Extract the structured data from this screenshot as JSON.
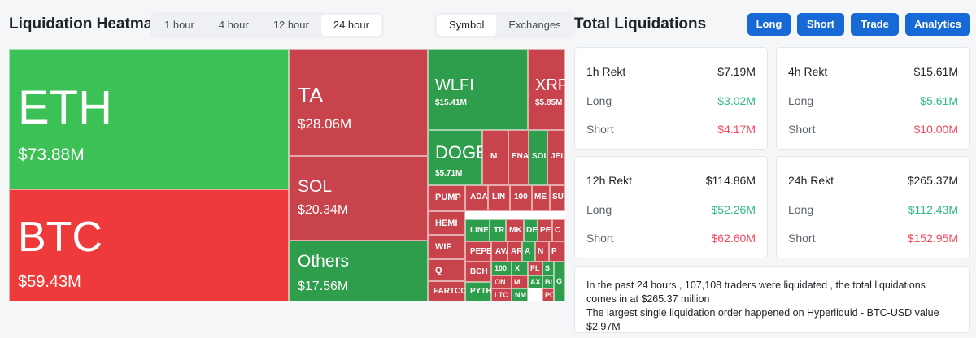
{
  "heatmap": {
    "title": "Liquidation Heatmap",
    "time_tabs": [
      "1 hour",
      "4 hour",
      "12 hour",
      "24 hour"
    ],
    "active_time_tab": "24 hour",
    "view_tabs": [
      "Symbol",
      "Exchanges"
    ],
    "active_view_tab": "Symbol",
    "colors": {
      "long": "#3bc156",
      "short": "#ee3a3a",
      "long_dark": "#2f9e4c",
      "short_dark": "#c8434b"
    },
    "tiles": [
      {
        "symbol": "ETH",
        "value": "$73.88M",
        "type": "long"
      },
      {
        "symbol": "BTC",
        "value": "$59.43M",
        "type": "short"
      },
      {
        "symbol": "TA",
        "value": "$28.06M",
        "type": "short_dark"
      },
      {
        "symbol": "SOL",
        "value": "$20.34M",
        "type": "short_dark"
      },
      {
        "symbol": "Others",
        "value": "$17.56M",
        "type": "long_dark"
      },
      {
        "symbol": "WLFI",
        "value": "$15.41M",
        "type": "long_dark"
      },
      {
        "symbol": "XRP",
        "value": "$5.85M",
        "type": "short_dark"
      },
      {
        "symbol": "DOGE",
        "value": "$5.71M",
        "type": "long_dark"
      },
      {
        "symbol": "M",
        "value": "",
        "type": "short_dark"
      },
      {
        "symbol": "ENA",
        "value": "",
        "type": "short_dark"
      },
      {
        "symbol": "SOL",
        "value": "",
        "type": "long_dark"
      },
      {
        "symbol": "JEL",
        "value": "",
        "type": "short_dark"
      },
      {
        "symbol": "PUMP",
        "value": "",
        "type": "short_dark"
      },
      {
        "symbol": "ADA",
        "value": "",
        "type": "short_dark"
      },
      {
        "symbol": "LIN",
        "value": "",
        "type": "short_dark"
      },
      {
        "symbol": "100",
        "value": "",
        "type": "short_dark"
      },
      {
        "symbol": "ME",
        "value": "",
        "type": "short_dark"
      },
      {
        "symbol": "SU",
        "value": "",
        "type": "short_dark"
      },
      {
        "symbol": "HEMI",
        "value": "",
        "type": "short_dark"
      },
      {
        "symbol": "LINE",
        "value": "",
        "type": "long_dark"
      },
      {
        "symbol": "TR",
        "value": "",
        "type": "long_dark"
      },
      {
        "symbol": "MK",
        "value": "",
        "type": "short_dark"
      },
      {
        "symbol": "DE",
        "value": "",
        "type": "long_dark"
      },
      {
        "symbol": "PE",
        "value": "",
        "type": "short_dark"
      },
      {
        "symbol": "C",
        "value": "",
        "type": "short_dark"
      },
      {
        "symbol": "WIF",
        "value": "",
        "type": "short_dark"
      },
      {
        "symbol": "PEPE",
        "value": "",
        "type": "short_dark"
      },
      {
        "symbol": "AVA",
        "value": "",
        "type": "short_dark"
      },
      {
        "symbol": "Q",
        "value": "",
        "type": "short_dark"
      },
      {
        "symbol": "BCH",
        "value": "",
        "type": "short_dark"
      },
      {
        "symbol": "FARTCO",
        "value": "",
        "type": "short_dark"
      },
      {
        "symbol": "PYTH",
        "value": "",
        "type": "long_dark"
      },
      {
        "symbol": "100",
        "value": "",
        "type": "long_dark"
      },
      {
        "symbol": "ON",
        "value": "",
        "type": "short_dark"
      },
      {
        "symbol": "LTC",
        "value": "",
        "type": "short_dark"
      },
      {
        "symbol": "NM",
        "value": "",
        "type": "long_dark"
      },
      {
        "symbol": "AR",
        "value": "",
        "type": "short_dark"
      },
      {
        "symbol": "X",
        "value": "",
        "type": "long_dark"
      },
      {
        "symbol": "A",
        "value": "",
        "type": "long_dark"
      },
      {
        "symbol": "PL",
        "value": "",
        "type": "short_dark"
      },
      {
        "symbol": "M",
        "value": "",
        "type": "short_dark"
      },
      {
        "symbol": "AX",
        "value": "",
        "type": "long_dark"
      },
      {
        "symbol": "N",
        "value": "",
        "type": "short_dark"
      },
      {
        "symbol": "S",
        "value": "",
        "type": "long_dark"
      },
      {
        "symbol": "BI",
        "value": "",
        "type": "long_dark"
      },
      {
        "symbol": "PO",
        "value": "",
        "type": "short_dark"
      },
      {
        "symbol": "P",
        "value": "",
        "type": "short_dark"
      },
      {
        "symbol": "G",
        "value": "",
        "type": "long_dark"
      }
    ]
  },
  "totals": {
    "title": "Total Liquidations",
    "buttons": [
      "Long",
      "Short",
      "Trade",
      "Analytics"
    ],
    "cards": [
      {
        "label": "1h Rekt",
        "total": "$7.19M",
        "long_label": "Long",
        "long": "$3.02M",
        "short_label": "Short",
        "short": "$4.17M"
      },
      {
        "label": "4h Rekt",
        "total": "$15.61M",
        "long_label": "Long",
        "long": "$5.61M",
        "short_label": "Short",
        "short": "$10.00M"
      },
      {
        "label": "12h Rekt",
        "total": "$114.86M",
        "long_label": "Long",
        "long": "$52.26M",
        "short_label": "Short",
        "short": "$62.60M"
      },
      {
        "label": "24h Rekt",
        "total": "$265.37M",
        "long_label": "Long",
        "long": "$112.43M",
        "short_label": "Short",
        "short": "$152.95M"
      }
    ],
    "summary": {
      "line1": "In the past 24 hours , 107,108 traders were liquidated , the total liquidations comes in at $265.37 million",
      "line2": "The largest single liquidation order happened on Hyperliquid - BTC-USD value $2.97M"
    }
  }
}
